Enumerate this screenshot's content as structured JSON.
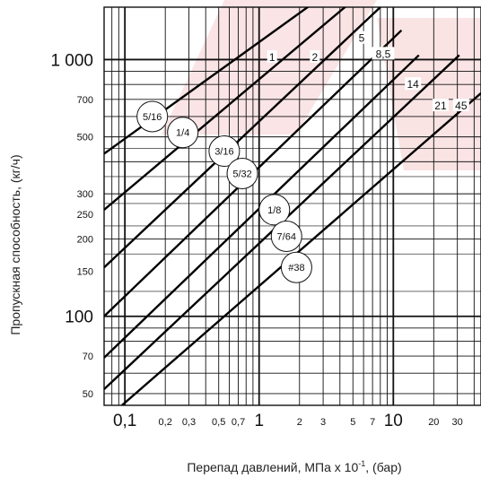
{
  "chart_data": {
    "type": "line",
    "title": "",
    "xlabel": "Перепад давлений, МПа х 10",
    "xlabel_sup": "-1",
    "xlabel_tail": ", (бар)",
    "ylabel": "Пропускная способность, (кг/ч)",
    "x_scale": "log",
    "y_scale": "log",
    "xlim": [
      0.07,
      45
    ],
    "ylim": [
      45,
      1600
    ],
    "grid": true,
    "x_ticks": [
      {
        "value": 0.1,
        "label": "0,1",
        "major": true
      },
      {
        "value": 0.2,
        "label": "0,2",
        "major": false
      },
      {
        "value": 0.3,
        "label": "0,3",
        "major": false
      },
      {
        "value": 0.5,
        "label": "0,5",
        "major": false
      },
      {
        "value": 0.7,
        "label": "0,7",
        "major": false
      },
      {
        "value": 1,
        "label": "1",
        "major": true
      },
      {
        "value": 2,
        "label": "2",
        "major": false
      },
      {
        "value": 3,
        "label": "3",
        "major": false
      },
      {
        "value": 5,
        "label": "5",
        "major": false
      },
      {
        "value": 7,
        "label": "7",
        "major": false
      },
      {
        "value": 10,
        "label": "10",
        "major": true
      },
      {
        "value": 20,
        "label": "20",
        "major": false
      },
      {
        "value": 30,
        "label": "30",
        "major": false
      }
    ],
    "y_ticks": [
      {
        "value": 50,
        "label": "50",
        "major": false
      },
      {
        "value": 70,
        "label": "70",
        "major": false
      },
      {
        "value": 100,
        "label": "100",
        "major": true
      },
      {
        "value": 150,
        "label": "150",
        "major": false
      },
      {
        "value": 200,
        "label": "200",
        "major": false
      },
      {
        "value": 250,
        "label": "250",
        "major": false
      },
      {
        "value": 300,
        "label": "300",
        "major": false
      },
      {
        "value": 500,
        "label": "500",
        "major": false
      },
      {
        "value": 700,
        "label": "700",
        "major": false
      },
      {
        "value": 1000,
        "label": "1 000",
        "major": true
      }
    ],
    "series": [
      {
        "name": "5/16",
        "points": [
          [
            0.07,
            430
          ],
          [
            2.7,
            1700
          ]
        ]
      },
      {
        "name": "1/4",
        "points": [
          [
            0.07,
            260
          ],
          [
            5.0,
            1700
          ]
        ]
      },
      {
        "name": "3/16",
        "points": [
          [
            0.07,
            155
          ],
          [
            8.0,
            1600
          ]
        ]
      },
      {
        "name": "5/32",
        "points": [
          [
            0.07,
            100
          ],
          [
            11.5,
            1300
          ]
        ]
      },
      {
        "name": "1/8",
        "points": [
          [
            0.07,
            69
          ],
          [
            15.5,
            1040
          ]
        ]
      },
      {
        "name": "7/64",
        "points": [
          [
            0.07,
            52
          ],
          [
            31.0,
            1040
          ]
        ]
      },
      {
        "name": "#38",
        "points": [
          [
            0.095,
            45
          ],
          [
            45.0,
            740
          ]
        ]
      }
    ],
    "orifice_labels": [
      {
        "text": "5/16",
        "x": 0.16,
        "y": 600
      },
      {
        "text": "1/4",
        "x": 0.27,
        "y": 520
      },
      {
        "text": "3/16",
        "x": 0.55,
        "y": 440
      },
      {
        "text": "5/32",
        "x": 0.75,
        "y": 360
      },
      {
        "text": "1/8",
        "x": 1.3,
        "y": 260
      },
      {
        "text": "7/64",
        "x": 1.6,
        "y": 205
      },
      {
        "text": "#38",
        "x": 1.9,
        "y": 155
      }
    ],
    "curve_labels": [
      {
        "text": "1",
        "x": 1.25,
        "y": 1020
      },
      {
        "text": "2",
        "x": 2.6,
        "y": 1020
      },
      {
        "text": "5",
        "x": 5.8,
        "y": 1210
      },
      {
        "text": "8,5",
        "x": 8.4,
        "y": 1050
      },
      {
        "text": "14",
        "x": 14.0,
        "y": 800
      },
      {
        "text": "21",
        "x": 22.5,
        "y": 660
      },
      {
        "text": "45",
        "x": 32.0,
        "y": 660
      }
    ]
  }
}
